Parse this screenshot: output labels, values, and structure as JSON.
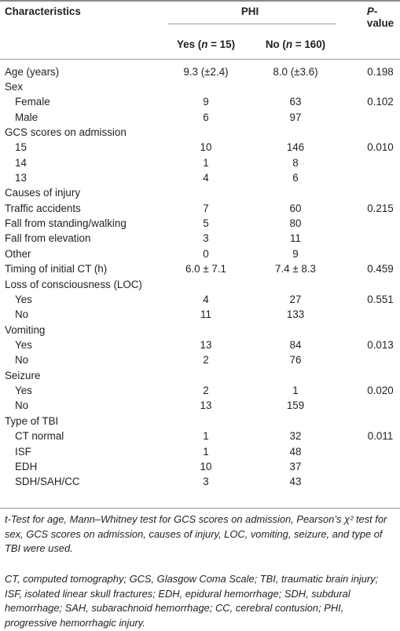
{
  "header": {
    "characteristics": "Characteristics",
    "group": "PHI",
    "yes": [
      "Yes (",
      "n",
      " = 15)"
    ],
    "no": [
      "No (",
      "n",
      " = 160)"
    ],
    "p_value": [
      "P",
      "-value"
    ]
  },
  "table": {
    "rows": [
      [
        "Age (years)",
        "9.3 (±2.4)",
        "8.0 (±3.6)",
        "0.198"
      ],
      [
        "Sex"
      ],
      [
        "Female",
        "9",
        "63",
        "0.102"
      ],
      [
        "Male",
        "6",
        "97"
      ],
      [
        "GCS scores on admission"
      ],
      [
        "15",
        "10",
        "146",
        "0.010"
      ],
      [
        "14",
        "1",
        "8"
      ],
      [
        "13",
        "4",
        "6"
      ],
      [
        "Causes of injury"
      ],
      [
        "Traffic accidents",
        "7",
        "60",
        "0.215"
      ],
      [
        "Fall from standing/walking",
        "5",
        "80"
      ],
      [
        "Fall from elevation",
        "3",
        "11"
      ],
      [
        "Other",
        "0",
        "9"
      ],
      [
        "Timing of initial CT (h)",
        "6.0 ± 7.1",
        "7.4 ± 8.3",
        "0.459"
      ],
      [
        "Loss of consciousness (LOC)"
      ],
      [
        "Yes",
        "4",
        "27",
        "0.551"
      ],
      [
        "No",
        "11",
        "133"
      ],
      [
        "Vomiting"
      ],
      [
        "Yes",
        "13",
        "84",
        "0.013"
      ],
      [
        "No",
        "2",
        "76"
      ],
      [
        "Seizure"
      ],
      [
        "Yes",
        "2",
        "1",
        "0.020"
      ],
      [
        "No",
        "13",
        "159"
      ],
      [
        "Type of TBI"
      ],
      [
        "CT normal",
        "1",
        "32",
        "0.011"
      ],
      [
        "ISF",
        "1",
        "48"
      ],
      [
        "EDH",
        "10",
        "37"
      ],
      [
        "SDH/SAH/CC",
        "3",
        "43"
      ]
    ]
  },
  "notes": [
    "t-Test for age, Mann–Whitney test for GCS scores on admission, Pearson’s χ² test for sex, GCS scores on admission, causes of injury, LOC, vomiting, seizure, and type of TBI were used.",
    "CT, computed tomography; GCS, Glasgow Coma Scale; TBI, traumatic brain injury; ISF, isolated linear skull fractures; EDH, epidural hemorrhage; SDH, subdural hemorrhage; SAH, subarachnoid hemorrhage; CC, cerebral contusion; PHI, progressive hemorrhagic injury."
  ]
}
